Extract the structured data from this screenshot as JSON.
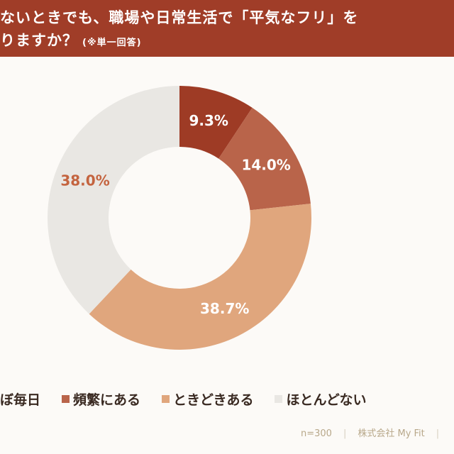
{
  "header": {
    "title_line1": "ないときでも、職場や日常生活で「平気なフリ」を",
    "title_line2": "りますか？",
    "note": "(※単一回答)"
  },
  "chart_data": {
    "type": "pie",
    "donut": true,
    "categories": [
      "ぼ毎日",
      "頻繁にある",
      "ときどきある",
      "ほとんどない"
    ],
    "values": [
      9.3,
      14.0,
      38.7,
      38.0
    ],
    "data_labels": [
      "9.3%",
      "14.0%",
      "38.7%",
      "38.0%"
    ],
    "colors": [
      "#9e3b25",
      "#b9644a",
      "#e0a67d",
      "#e9e7e3"
    ],
    "label_colors": [
      "#ffffff",
      "#ffffff",
      "#ffffff",
      "#c4643f"
    ],
    "legend_position": "bottom"
  },
  "footer": {
    "sample": "n=300",
    "company": "株式会社 My Fit"
  }
}
